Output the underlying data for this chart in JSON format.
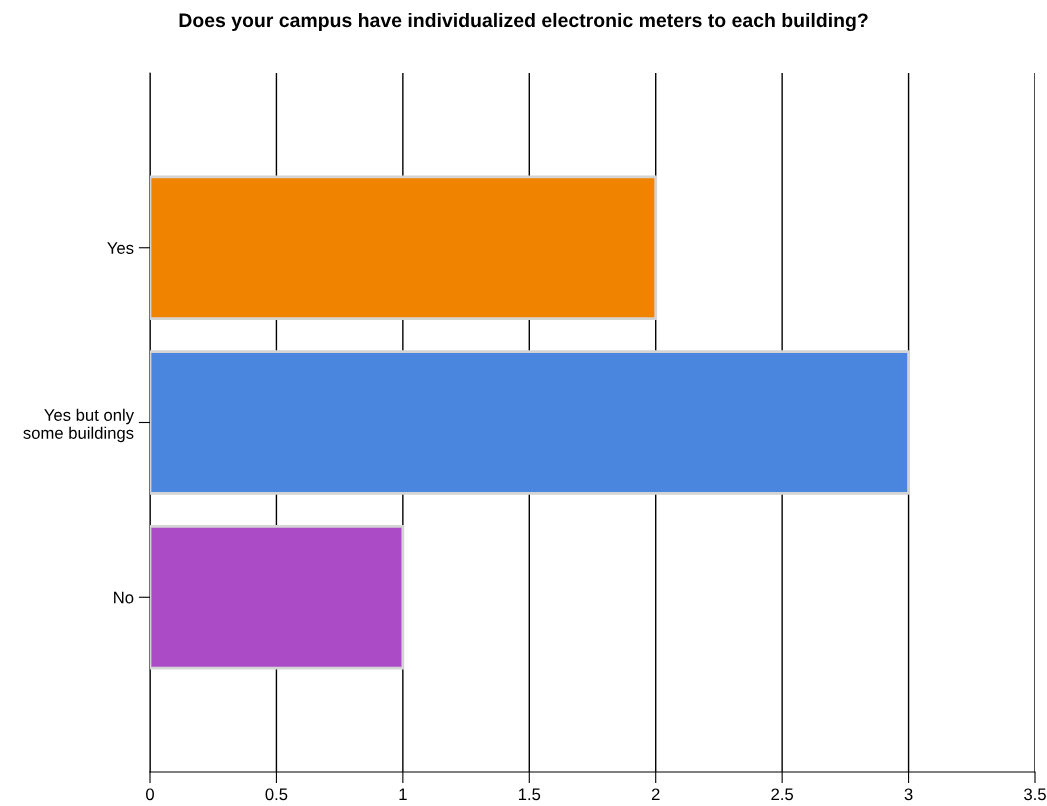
{
  "chart_data": {
    "type": "bar",
    "orientation": "horizontal",
    "title": "Does your campus have individualized electronic meters to each building?",
    "categories": [
      "Yes",
      "Yes but only\nsome buildings",
      "No"
    ],
    "values": [
      2,
      3,
      1
    ],
    "colors": [
      "#f08300",
      "#4a86dd",
      "#ab4cc6"
    ],
    "xlim": [
      0,
      3.5
    ],
    "xticks": [
      0,
      0.5,
      1,
      1.5,
      2,
      2.5,
      3,
      3.5
    ],
    "grid": "x",
    "legend": false
  }
}
